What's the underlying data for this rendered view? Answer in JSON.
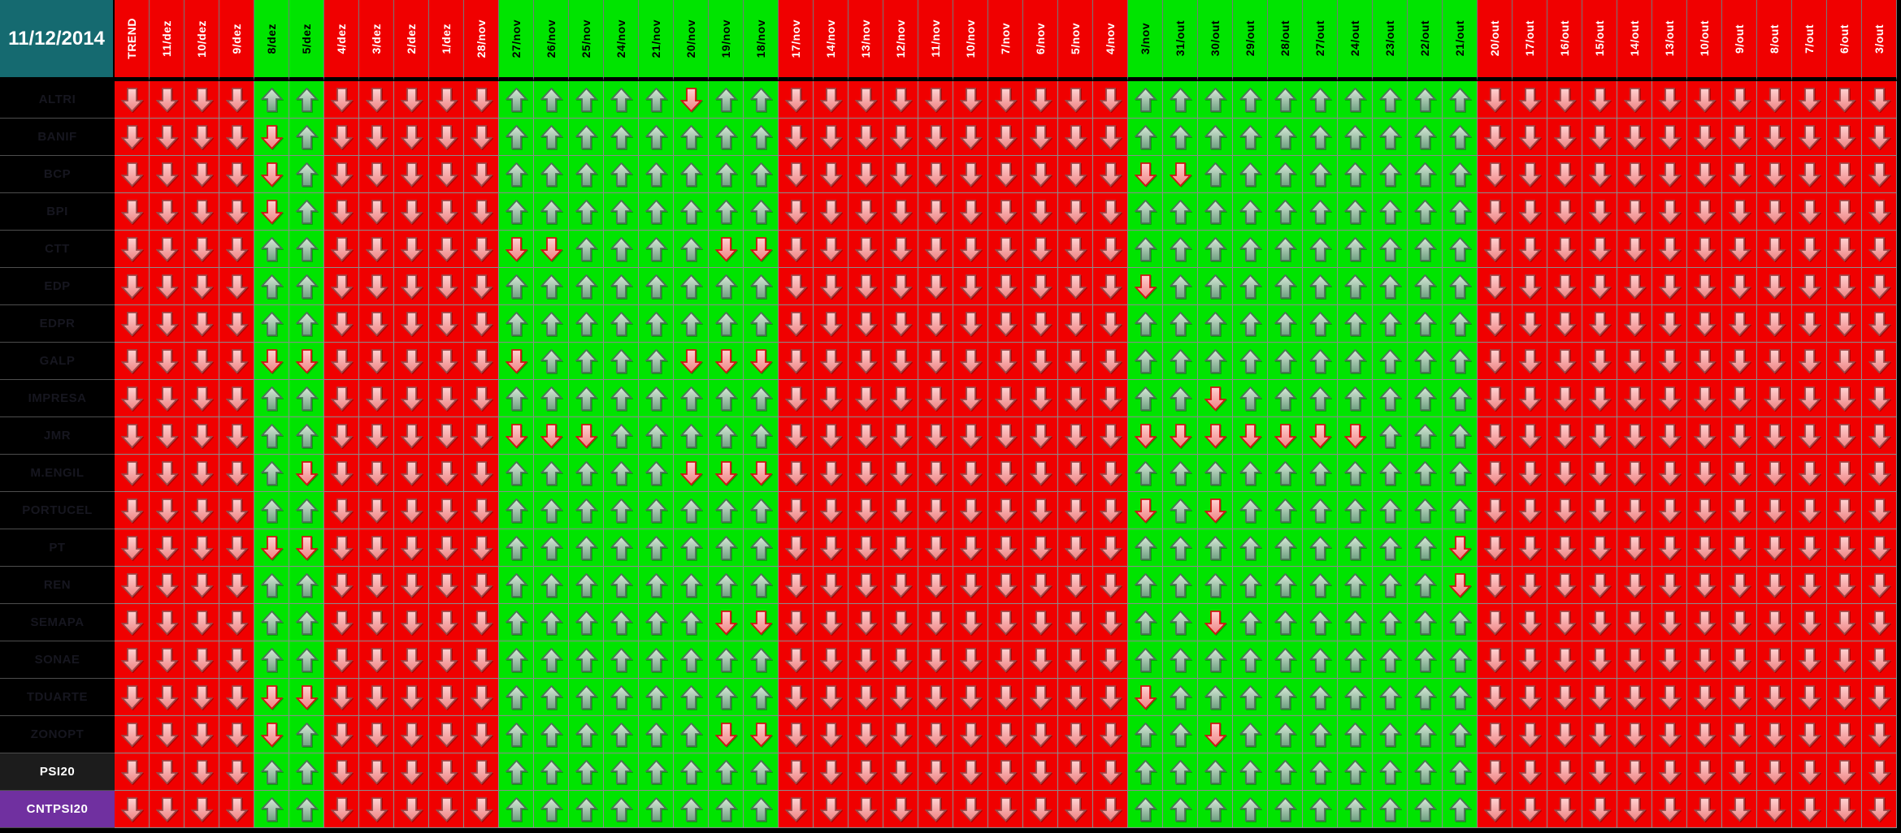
{
  "title_date": "11/12/2014",
  "arrow_direction_by_tone": {
    "red": "down",
    "green": "up"
  },
  "columns": [
    {
      "label": "TREND",
      "tone": "red"
    },
    {
      "label": "11/dez",
      "tone": "red"
    },
    {
      "label": "10/dez",
      "tone": "red"
    },
    {
      "label": "9/dez",
      "tone": "red"
    },
    {
      "label": "8/dez",
      "tone": "green"
    },
    {
      "label": "5/dez",
      "tone": "green"
    },
    {
      "label": "4/dez",
      "tone": "red"
    },
    {
      "label": "3/dez",
      "tone": "red"
    },
    {
      "label": "2/dez",
      "tone": "red"
    },
    {
      "label": "1/dez",
      "tone": "red"
    },
    {
      "label": "28/nov",
      "tone": "red"
    },
    {
      "label": "27/nov",
      "tone": "green"
    },
    {
      "label": "26/nov",
      "tone": "green"
    },
    {
      "label": "25/nov",
      "tone": "green"
    },
    {
      "label": "24/nov",
      "tone": "green"
    },
    {
      "label": "21/nov",
      "tone": "green"
    },
    {
      "label": "20/nov",
      "tone": "green"
    },
    {
      "label": "19/nov",
      "tone": "green"
    },
    {
      "label": "18/nov",
      "tone": "green"
    },
    {
      "label": "17/nov",
      "tone": "red"
    },
    {
      "label": "14/nov",
      "tone": "red"
    },
    {
      "label": "13/nov",
      "tone": "red"
    },
    {
      "label": "12/nov",
      "tone": "red"
    },
    {
      "label": "11/nov",
      "tone": "red"
    },
    {
      "label": "10/nov",
      "tone": "red"
    },
    {
      "label": "7/nov",
      "tone": "red"
    },
    {
      "label": "6/nov",
      "tone": "red"
    },
    {
      "label": "5/nov",
      "tone": "red"
    },
    {
      "label": "4/nov",
      "tone": "red"
    },
    {
      "label": "3/nov",
      "tone": "green"
    },
    {
      "label": "31/out",
      "tone": "green"
    },
    {
      "label": "30/out",
      "tone": "green"
    },
    {
      "label": "29/out",
      "tone": "green"
    },
    {
      "label": "28/out",
      "tone": "green"
    },
    {
      "label": "27/out",
      "tone": "green"
    },
    {
      "label": "24/out",
      "tone": "green"
    },
    {
      "label": "23/out",
      "tone": "green"
    },
    {
      "label": "22/out",
      "tone": "green"
    },
    {
      "label": "21/out",
      "tone": "green"
    },
    {
      "label": "20/out",
      "tone": "red"
    },
    {
      "label": "17/out",
      "tone": "red"
    },
    {
      "label": "16/out",
      "tone": "red"
    },
    {
      "label": "15/out",
      "tone": "red"
    },
    {
      "label": "14/out",
      "tone": "red"
    },
    {
      "label": "13/out",
      "tone": "red"
    },
    {
      "label": "10/out",
      "tone": "red"
    },
    {
      "label": "9/out",
      "tone": "red"
    },
    {
      "label": "8/out",
      "tone": "red"
    },
    {
      "label": "7/out",
      "tone": "red"
    },
    {
      "label": "6/out",
      "tone": "red"
    },
    {
      "label": "3/out",
      "tone": "red"
    }
  ],
  "rows": [
    {
      "label": "ALTRI",
      "variant": "ticker",
      "reversed_cells": [
        16
      ]
    },
    {
      "label": "BANIF",
      "variant": "ticker",
      "reversed_cells": [
        4
      ]
    },
    {
      "label": "BCP",
      "variant": "ticker",
      "reversed_cells": [
        4,
        29,
        30
      ]
    },
    {
      "label": "BPI",
      "variant": "ticker",
      "reversed_cells": [
        4
      ]
    },
    {
      "label": "CTT",
      "variant": "ticker",
      "reversed_cells": [
        11,
        12,
        17,
        18
      ]
    },
    {
      "label": "EDP",
      "variant": "ticker",
      "reversed_cells": [
        29
      ]
    },
    {
      "label": "EDPR",
      "variant": "ticker",
      "reversed_cells": []
    },
    {
      "label": "GALP",
      "variant": "ticker",
      "reversed_cells": [
        4,
        5,
        11,
        16,
        17,
        18
      ]
    },
    {
      "label": "IMPRESA",
      "variant": "ticker",
      "reversed_cells": [
        31
      ]
    },
    {
      "label": "JMR",
      "variant": "ticker",
      "reversed_cells": [
        11,
        12,
        13,
        29,
        30,
        31,
        32,
        33,
        34,
        35
      ]
    },
    {
      "label": "M.ENGIL",
      "variant": "ticker",
      "reversed_cells": [
        5,
        16,
        17,
        18
      ]
    },
    {
      "label": "PORTUCEL",
      "variant": "ticker",
      "reversed_cells": [
        29,
        31
      ]
    },
    {
      "label": "PT",
      "variant": "ticker",
      "reversed_cells": [
        4,
        5,
        38
      ]
    },
    {
      "label": "REN",
      "variant": "ticker",
      "reversed_cells": [
        38
      ]
    },
    {
      "label": "SEMAPA",
      "variant": "ticker",
      "reversed_cells": [
        17,
        18,
        31
      ]
    },
    {
      "label": "SONAE",
      "variant": "ticker",
      "reversed_cells": []
    },
    {
      "label": "TDUARTE",
      "variant": "ticker",
      "reversed_cells": [
        4,
        5,
        29
      ]
    },
    {
      "label": "ZONOPT",
      "variant": "ticker",
      "reversed_cells": [
        4,
        17,
        18,
        31
      ]
    },
    {
      "label": "PSI20",
      "variant": "index",
      "reversed_cells": []
    },
    {
      "label": "CNTPSI20",
      "variant": "counter",
      "reversed_cells": []
    }
  ],
  "colors": {
    "header_date_bg": "#156a70",
    "down_column_bg": "#f00000",
    "up_column_bg": "#00e400",
    "row_label_bg": "#000000",
    "row_label_text": "#16161f",
    "psi20_row_bg": "#1c1c1c",
    "psi20_row_text": "#ffffff",
    "cntpsi20_row_bg": "#7030a0",
    "grid_line": "#8c8c8c",
    "up_arrow_fill_top": "#d9e9d9",
    "up_arrow_fill_bottom": "#6fa181",
    "up_arrow_stroke": "#4f7059",
    "down_arrow_fill_top": "#ffd2d2",
    "down_arrow_fill_bottom": "#ee8181",
    "down_arrow_stroke_on_red": "#9b4a4a",
    "down_arrow_stroke_on_green": "#cf1515"
  }
}
